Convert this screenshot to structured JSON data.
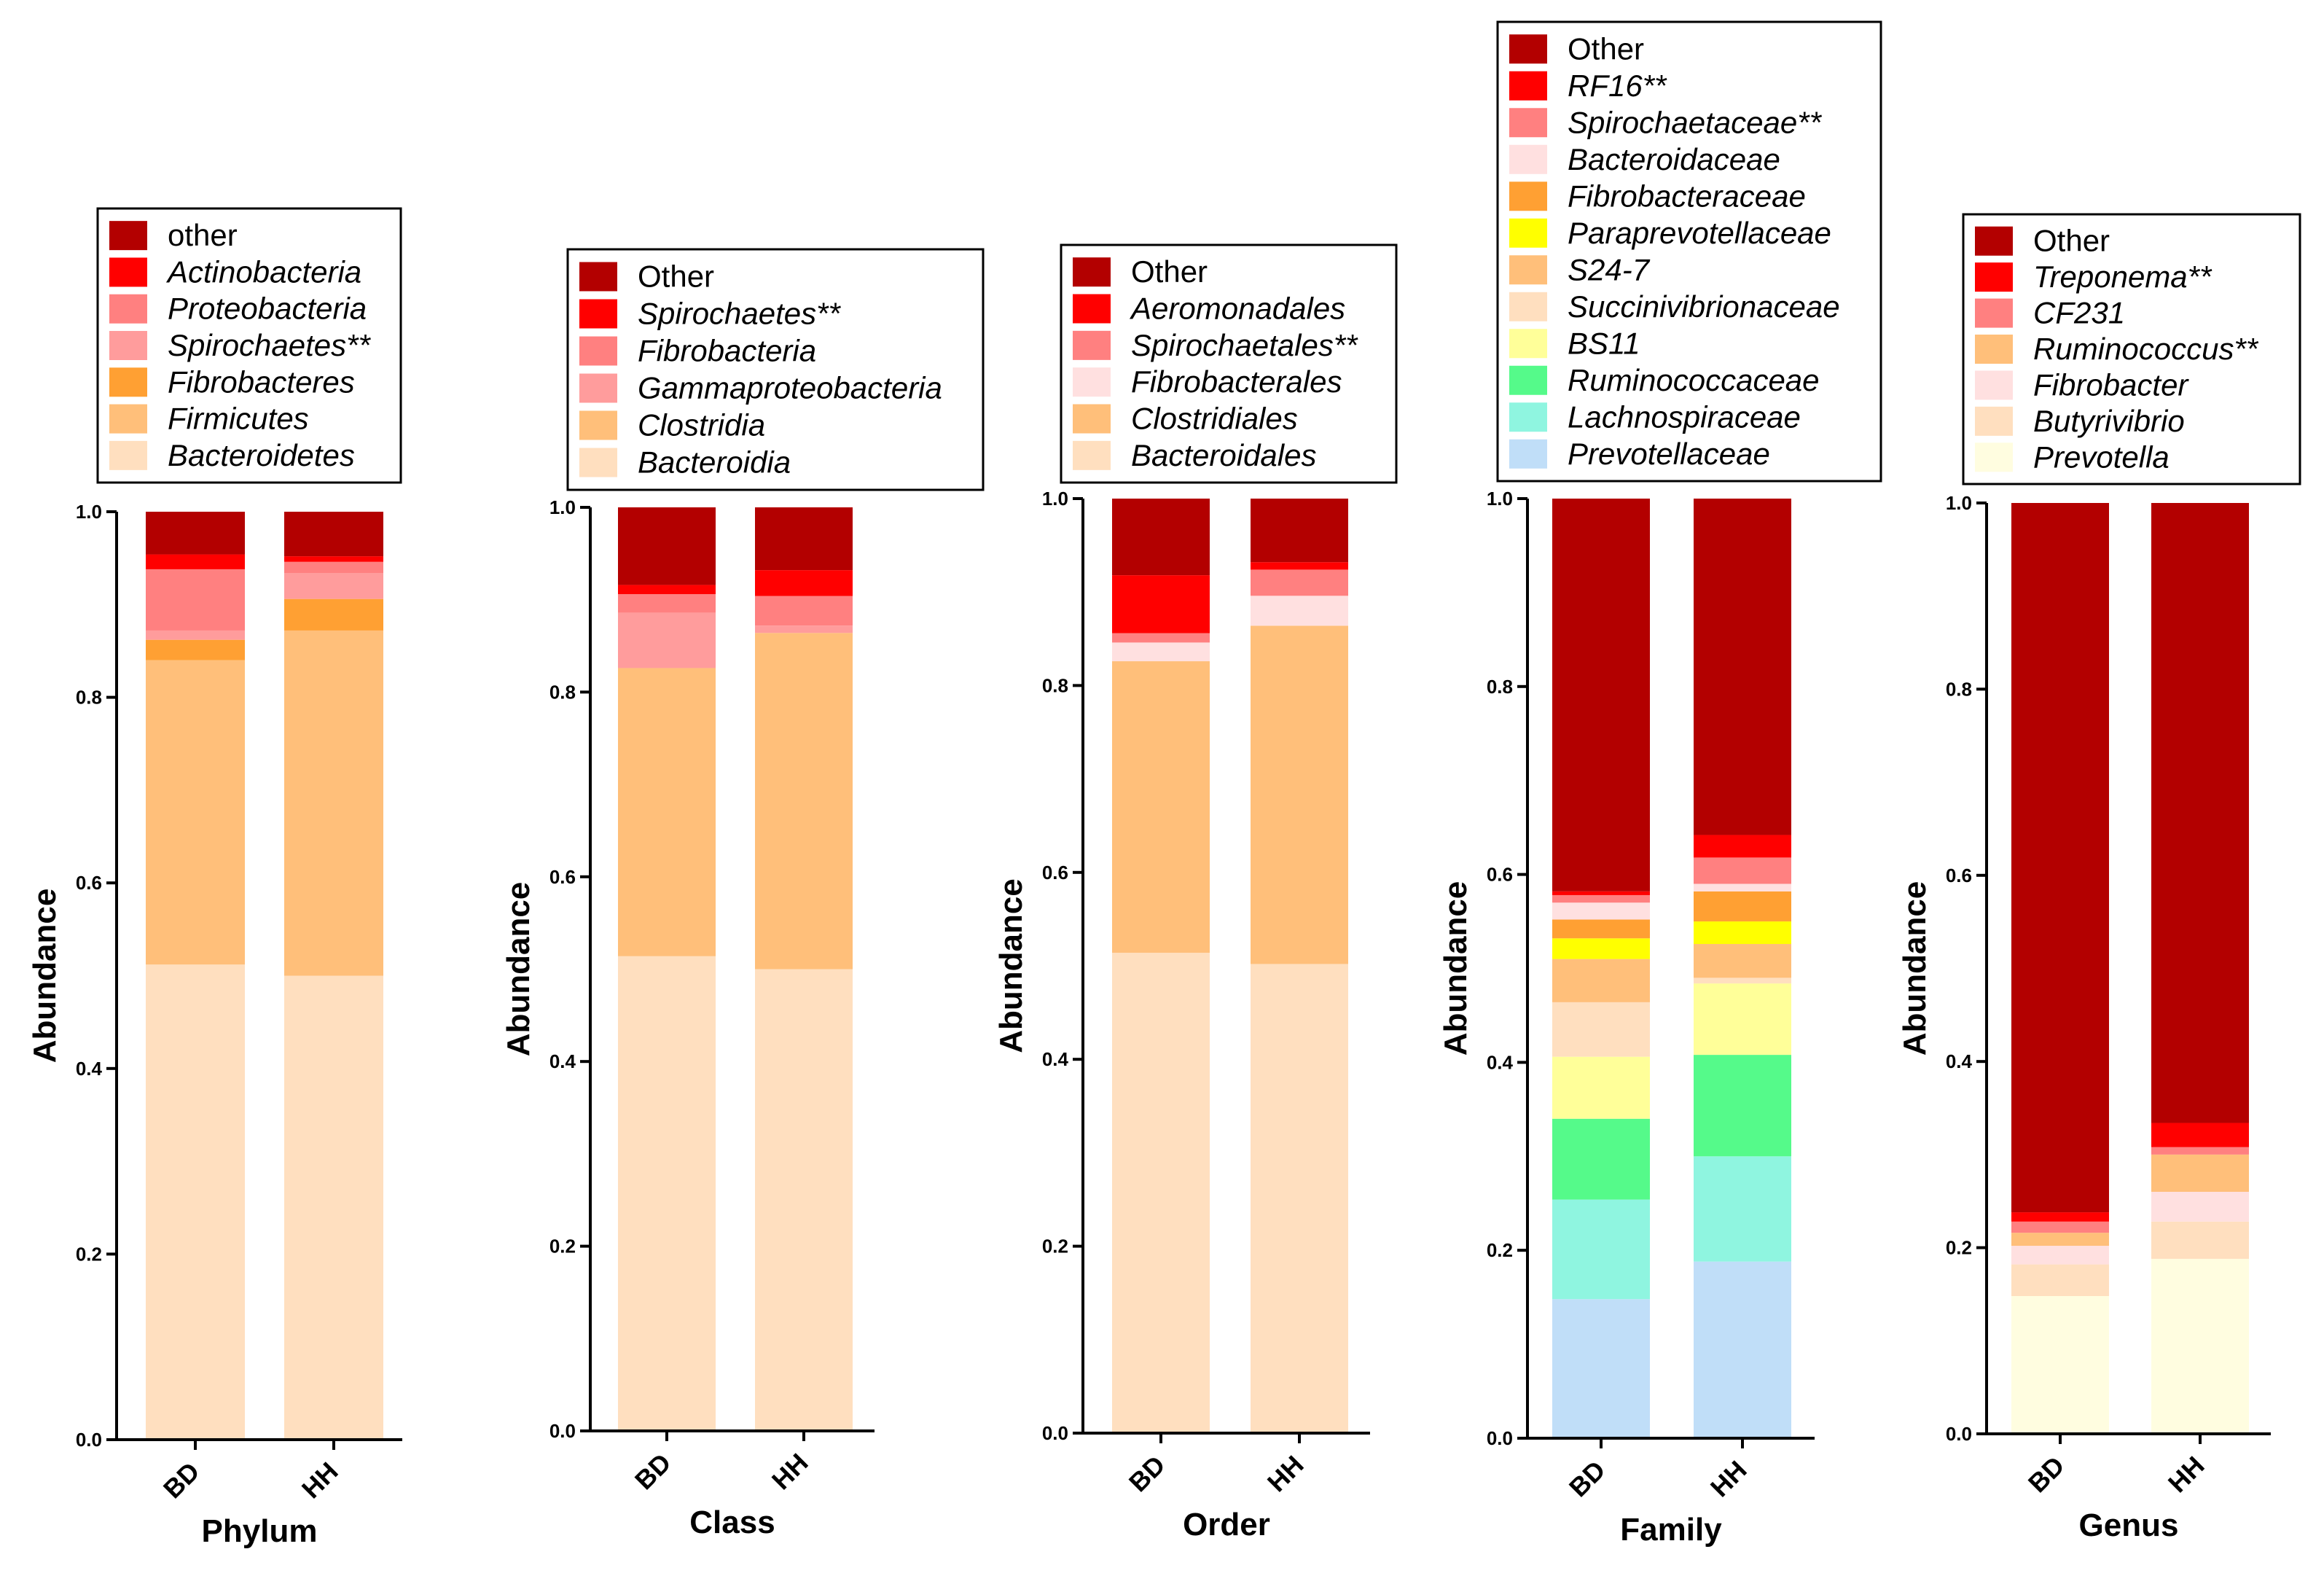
{
  "colors": {
    "dark_red": "#B30000",
    "red": "#FF0000",
    "salmon": "#FF8080",
    "light_pink": "#FF9C9C",
    "pale_pink": "#FFE0E0",
    "orange": "#FFA033",
    "light_orange": "#FFBF7A",
    "peach": "#FFDFBF",
    "yellow": "#FFFF00",
    "pale_yellow": "#FFFF99",
    "cream": "#FFFDE0",
    "green": "#55FA8A",
    "aqua": "#8FF5E0",
    "light_blue": "#C0DEF8"
  },
  "chart_data": [
    {
      "type": "bar",
      "stacked": true,
      "xlabel": "Phylum",
      "ylabel": "Abundance",
      "ylim": [
        0,
        1.0
      ],
      "y_ticks": [
        "0.0",
        "0.2",
        "0.4",
        "0.6",
        "0.8",
        "1.0"
      ],
      "categories": [
        "BD",
        "HH"
      ],
      "legend_position": "top",
      "series": [
        {
          "name": "Bacteroidetes",
          "color": "#FFDFBF",
          "italic": true,
          "values": [
            0.512,
            0.5
          ]
        },
        {
          "name": "Firmicutes",
          "color": "#FFBF7A",
          "italic": true,
          "values": [
            0.328,
            0.372
          ]
        },
        {
          "name": "Fibrobacteres",
          "color": "#FFA033",
          "italic": true,
          "values": [
            0.022,
            0.034
          ]
        },
        {
          "name": "Spirochaetes**",
          "color": "#FF9C9C",
          "italic": true,
          "values": [
            0.01,
            0.028
          ]
        },
        {
          "name": "Proteobacteria",
          "color": "#FF8080",
          "italic": true,
          "values": [
            0.066,
            0.012
          ]
        },
        {
          "name": "Actinobacteria",
          "color": "#FF0000",
          "italic": true,
          "values": [
            0.016,
            0.006
          ]
        },
        {
          "name": "other",
          "color": "#B30000",
          "italic": false,
          "values": [
            0.046,
            0.048
          ]
        }
      ]
    },
    {
      "type": "bar",
      "stacked": true,
      "xlabel": "Class",
      "ylabel": "Abundance",
      "ylim": [
        0,
        1.0
      ],
      "y_ticks": [
        "0.0",
        "0.2",
        "0.4",
        "0.6",
        "0.8",
        "1.0"
      ],
      "categories": [
        "BD",
        "HH"
      ],
      "legend_position": "top",
      "series": [
        {
          "name": "Bacteroidia",
          "color": "#FFDFBF",
          "italic": true,
          "values": [
            0.514,
            0.5
          ]
        },
        {
          "name": "Clostridia",
          "color": "#FFBF7A",
          "italic": true,
          "values": [
            0.312,
            0.364
          ]
        },
        {
          "name": "Gammaproteobacteria",
          "color": "#FF9C9C",
          "italic": true,
          "values": [
            0.06,
            0.008
          ]
        },
        {
          "name": "Fibrobacteria",
          "color": "#FF8080",
          "italic": true,
          "values": [
            0.02,
            0.032
          ]
        },
        {
          "name": "Spirochaetes**",
          "color": "#FF0000",
          "italic": true,
          "values": [
            0.01,
            0.028
          ]
        },
        {
          "name": "Other",
          "color": "#B30000",
          "italic": false,
          "values": [
            0.084,
            0.068
          ]
        }
      ]
    },
    {
      "type": "bar",
      "stacked": true,
      "xlabel": "Order",
      "ylabel": "Abundance",
      "ylim": [
        0,
        1.0
      ],
      "y_ticks": [
        "0.0",
        "0.2",
        "0.4",
        "0.6",
        "0.8",
        "1.0"
      ],
      "categories": [
        "BD",
        "HH"
      ],
      "legend_position": "top",
      "series": [
        {
          "name": "Bacteroidales",
          "color": "#FFDFBF",
          "italic": true,
          "values": [
            0.514,
            0.502
          ]
        },
        {
          "name": "Clostridiales",
          "color": "#FFBF7A",
          "italic": true,
          "values": [
            0.312,
            0.362
          ]
        },
        {
          "name": "Fibrobacterales",
          "color": "#FFE0E0",
          "italic": true,
          "values": [
            0.02,
            0.032
          ]
        },
        {
          "name": "Spirochaetales**",
          "color": "#FF8080",
          "italic": true,
          "values": [
            0.01,
            0.028
          ]
        },
        {
          "name": "Aeromonadales",
          "color": "#FF0000",
          "italic": true,
          "values": [
            0.062,
            0.008
          ]
        },
        {
          "name": "Other",
          "color": "#B30000",
          "italic": false,
          "values": [
            0.082,
            0.068
          ]
        }
      ]
    },
    {
      "type": "bar",
      "stacked": true,
      "xlabel": "Family",
      "ylabel": "Abundance",
      "ylim": [
        0,
        1.0
      ],
      "y_ticks": [
        "0.0",
        "0.2",
        "0.4",
        "0.6",
        "0.8",
        "1.0"
      ],
      "categories": [
        "BD",
        "HH"
      ],
      "legend_position": "top",
      "series": [
        {
          "name": "Prevotellaceae",
          "color": "#C0DEF8",
          "italic": true,
          "values": [
            0.148,
            0.188
          ]
        },
        {
          "name": "Lachnospiraceae",
          "color": "#8FF5E0",
          "italic": true,
          "values": [
            0.106,
            0.112
          ]
        },
        {
          "name": "Ruminococcaceae",
          "color": "#55FA8A",
          "italic": true,
          "values": [
            0.086,
            0.108
          ]
        },
        {
          "name": "BS11",
          "color": "#FFFF99",
          "italic": true,
          "values": [
            0.066,
            0.076
          ]
        },
        {
          "name": "Succinivibrionaceae",
          "color": "#FFDFBF",
          "italic": true,
          "values": [
            0.058,
            0.006
          ]
        },
        {
          "name": "S24-7",
          "color": "#FFBF7A",
          "italic": true,
          "values": [
            0.046,
            0.036
          ]
        },
        {
          "name": "Paraprevotellaceae",
          "color": "#FFFF00",
          "italic": true,
          "values": [
            0.022,
            0.024
          ]
        },
        {
          "name": "Fibrobacteraceae",
          "color": "#FFA033",
          "italic": true,
          "values": [
            0.02,
            0.032
          ]
        },
        {
          "name": "Bacteroidaceae",
          "color": "#FFE0E0",
          "italic": true,
          "values": [
            0.018,
            0.008
          ]
        },
        {
          "name": "Spirochaetaceae**",
          "color": "#FF8080",
          "italic": true,
          "values": [
            0.008,
            0.028
          ]
        },
        {
          "name": "RF16**",
          "color": "#FF0000",
          "italic": true,
          "values": [
            0.004,
            0.024
          ]
        },
        {
          "name": "Other",
          "color": "#B30000",
          "italic": false,
          "values": [
            0.418,
            0.358
          ]
        }
      ]
    },
    {
      "type": "bar",
      "stacked": true,
      "xlabel": "Genus",
      "ylabel": "Abundance",
      "ylim": [
        0,
        1.0
      ],
      "y_ticks": [
        "0.0",
        "0.2",
        "0.4",
        "0.6",
        "0.8",
        "1.0"
      ],
      "categories": [
        "BD",
        "HH"
      ],
      "legend_position": "top",
      "series": [
        {
          "name": "Prevotella",
          "color": "#FFFDE0",
          "italic": true,
          "values": [
            0.148,
            0.188
          ]
        },
        {
          "name": "Butyrivibrio",
          "color": "#FFDFBF",
          "italic": true,
          "values": [
            0.034,
            0.04
          ]
        },
        {
          "name": "Fibrobacter",
          "color": "#FFE0E0",
          "italic": true,
          "values": [
            0.02,
            0.032
          ]
        },
        {
          "name": "Ruminococcus**",
          "color": "#FFBF7A",
          "italic": true,
          "values": [
            0.014,
            0.04
          ]
        },
        {
          "name": "CF231",
          "color": "#FF8080",
          "italic": true,
          "values": [
            0.012,
            0.008
          ]
        },
        {
          "name": "Treponema**",
          "color": "#FF0000",
          "italic": true,
          "values": [
            0.01,
            0.026
          ]
        },
        {
          "name": "Other",
          "color": "#B30000",
          "italic": false,
          "values": [
            0.762,
            0.666
          ]
        }
      ]
    }
  ]
}
